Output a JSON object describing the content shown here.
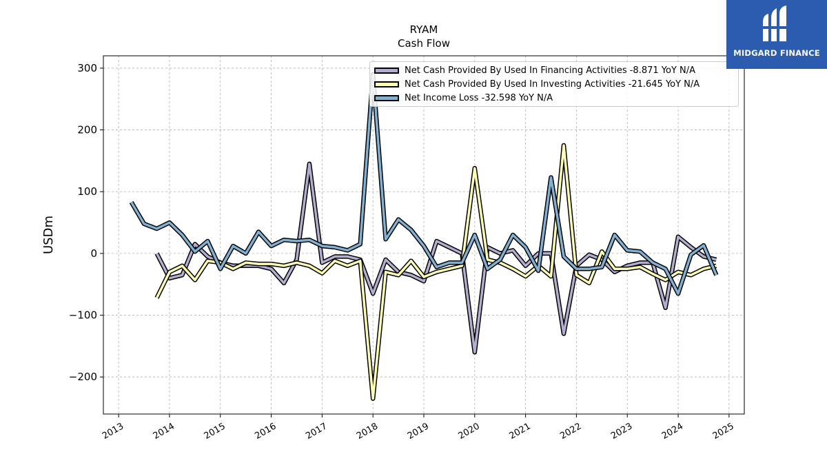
{
  "logo": {
    "text": "MIDGARD FINANCE",
    "icon": "midgard-logo-icon",
    "bg": "#2b5cb0"
  },
  "chart_data": {
    "type": "line",
    "title": "RYAM",
    "subtitle": "Cash Flow",
    "ylabel": "USDm",
    "xlabel": "",
    "xlim": [
      2012.7,
      2025.3
    ],
    "ylim": [
      -260,
      320
    ],
    "yticks": [
      -200,
      -100,
      0,
      100,
      200,
      300
    ],
    "ytick_labels": [
      "−200",
      "−100",
      "0",
      "100",
      "200",
      "300"
    ],
    "xticks": [
      2013,
      2014,
      2015,
      2016,
      2017,
      2018,
      2019,
      2020,
      2021,
      2022,
      2023,
      2024,
      2025
    ],
    "xtick_labels": [
      "2013",
      "2014",
      "2015",
      "2016",
      "2017",
      "2018",
      "2019",
      "2020",
      "2021",
      "2022",
      "2023",
      "2024",
      "2025"
    ],
    "grid": true,
    "legend_position": "top-right",
    "series": [
      {
        "name": "Net Cash Provided By Used In Financing Activities  -8.871 YoY N/A",
        "color": "#b3aed0",
        "x": [
          2013.75,
          2014.0,
          2014.25,
          2014.5,
          2014.75,
          2015.0,
          2015.25,
          2015.5,
          2015.75,
          2016.0,
          2016.25,
          2016.5,
          2016.75,
          2017.0,
          2017.25,
          2017.5,
          2017.75,
          2018.0,
          2018.25,
          2018.5,
          2018.75,
          2019.0,
          2019.25,
          2019.5,
          2019.75,
          2020.0,
          2020.25,
          2020.5,
          2020.75,
          2021.0,
          2021.25,
          2021.5,
          2021.75,
          2022.0,
          2022.25,
          2022.5,
          2022.75,
          2023.0,
          2023.25,
          2023.5,
          2023.75,
          2024.0,
          2024.25,
          2024.5,
          2024.75
        ],
        "values": [
          0,
          -40,
          -35,
          15,
          -5,
          -15,
          -20,
          -20,
          -20,
          -25,
          -48,
          -10,
          145,
          -15,
          -5,
          -5,
          -10,
          -65,
          -10,
          -30,
          -35,
          -45,
          20,
          10,
          0,
          -160,
          10,
          0,
          5,
          -20,
          0,
          0,
          -130,
          -20,
          -2,
          -10,
          -30,
          -20,
          -15,
          -15,
          -88,
          27,
          10,
          -5,
          -10
        ]
      },
      {
        "name": "Net Cash Provided By Used In Investing Activities  -21.645 YoY N/A",
        "color": "#ffffb3",
        "x": [
          2013.75,
          2014.0,
          2014.25,
          2014.5,
          2014.75,
          2015.0,
          2015.25,
          2015.5,
          2015.75,
          2016.0,
          2016.25,
          2016.5,
          2016.75,
          2017.0,
          2017.25,
          2017.5,
          2017.75,
          2018.0,
          2018.25,
          2018.5,
          2018.75,
          2019.0,
          2019.25,
          2019.5,
          2019.75,
          2020.0,
          2020.25,
          2020.5,
          2020.75,
          2021.0,
          2021.25,
          2021.5,
          2021.75,
          2022.0,
          2022.25,
          2022.5,
          2022.75,
          2023.0,
          2023.25,
          2023.5,
          2023.75,
          2024.0,
          2024.25,
          2024.5,
          2024.75
        ],
        "values": [
          -72,
          -30,
          -20,
          -43,
          -12,
          -15,
          -25,
          -15,
          -17,
          -17,
          -20,
          -15,
          -20,
          -32,
          -12,
          -20,
          -12,
          -235,
          -30,
          -35,
          -12,
          -38,
          -30,
          -25,
          -20,
          138,
          -10,
          -15,
          -25,
          -37,
          -20,
          -37,
          175,
          -35,
          -48,
          3,
          -25,
          -25,
          -22,
          -33,
          -43,
          -30,
          -35,
          -25,
          -20
        ]
      },
      {
        "name": "Net Income Loss  -32.598 YoY N/A",
        "color": "#80b1d3",
        "x": [
          2013.25,
          2013.5,
          2013.75,
          2014.0,
          2014.25,
          2014.5,
          2014.75,
          2015.0,
          2015.25,
          2015.5,
          2015.75,
          2016.0,
          2016.25,
          2016.5,
          2016.75,
          2017.0,
          2017.25,
          2017.5,
          2017.75,
          2018.0,
          2018.25,
          2018.5,
          2018.75,
          2019.0,
          2019.25,
          2019.5,
          2019.75,
          2020.0,
          2020.25,
          2020.5,
          2020.75,
          2021.0,
          2021.25,
          2021.5,
          2021.75,
          2022.0,
          2022.25,
          2022.5,
          2022.75,
          2023.0,
          2023.25,
          2023.5,
          2023.75,
          2024.0,
          2024.25,
          2024.5,
          2024.75
        ],
        "values": [
          83,
          48,
          40,
          50,
          30,
          3,
          20,
          -25,
          12,
          0,
          35,
          12,
          22,
          20,
          22,
          12,
          10,
          5,
          15,
          290,
          23,
          55,
          38,
          12,
          -22,
          -15,
          -15,
          30,
          -25,
          -10,
          30,
          10,
          -28,
          123,
          -5,
          -25,
          -25,
          -22,
          30,
          5,
          3,
          -15,
          -25,
          -65,
          -2,
          13,
          -35
        ]
      }
    ]
  }
}
